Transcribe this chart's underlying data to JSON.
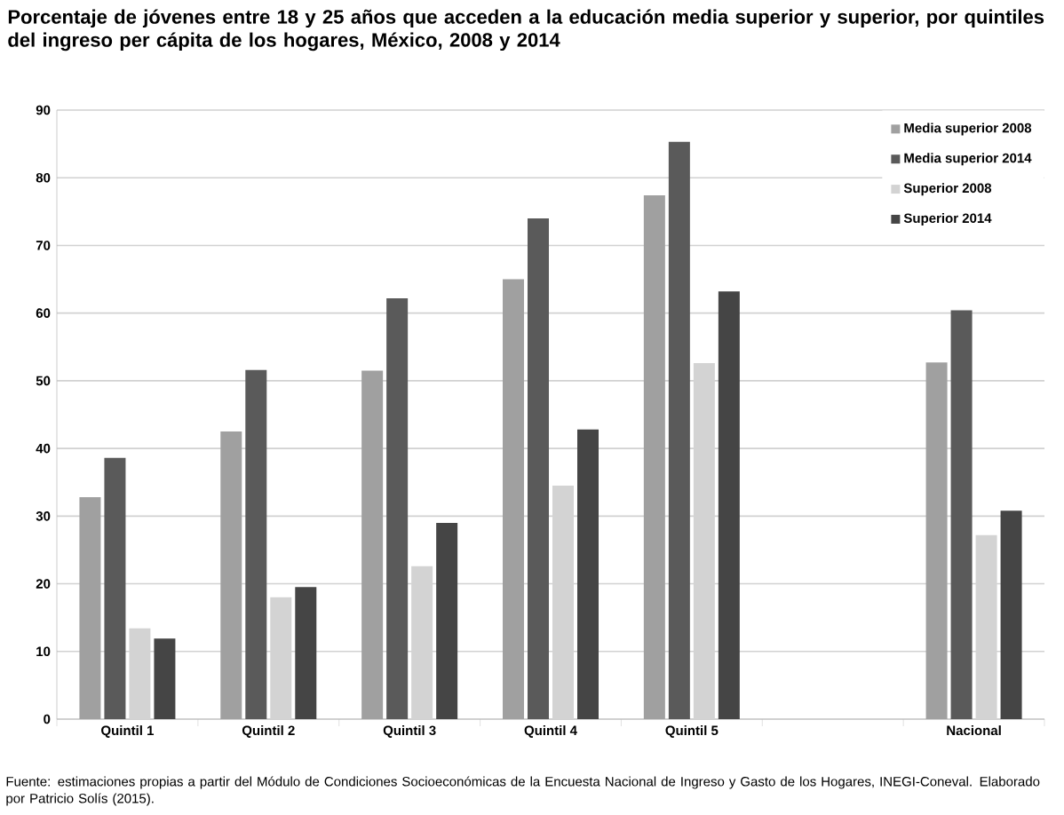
{
  "chart_data": {
    "type": "bar",
    "title": "Porcentaje de jóvenes entre 18 y 25 años que acceden a la educación media superior y superior, por quintiles del ingreso per cápita de los hogares, México, 2008 y 2014",
    "categories": [
      "Quintil 1",
      "Quintil 2",
      "Quintil 3",
      "Quintil 4",
      "Quintil 5",
      null,
      "Nacional"
    ],
    "series": [
      {
        "name": "Media superior 2008",
        "color": "#a0a0a0",
        "values": [
          32.8,
          42.5,
          51.5,
          65.0,
          77.4,
          null,
          52.7
        ]
      },
      {
        "name": "Media superior 2014",
        "color": "#5a5a5a",
        "values": [
          38.6,
          51.6,
          62.2,
          74.0,
          85.3,
          null,
          60.4
        ]
      },
      {
        "name": "Superior 2008",
        "color": "#d3d3d3",
        "values": [
          13.4,
          18.0,
          22.6,
          34.5,
          52.6,
          null,
          27.2
        ]
      },
      {
        "name": "Superior 2014",
        "color": "#454545",
        "values": [
          11.9,
          19.5,
          29.0,
          42.8,
          63.2,
          null,
          30.8
        ]
      }
    ],
    "ylim": [
      0,
      90
    ],
    "yticks": [
      0,
      10,
      20,
      30,
      40,
      50,
      60,
      70,
      80,
      90
    ],
    "grid": "y",
    "legend": "top right",
    "annotations": [
      "Fuente: estimaciones propias a partir del Módulo de Condiciones Socioeconómicas de la Encuesta Nacional de Ingreso y Gasto de los Hogares, INEGI-Coneval. Elaborado por Patricio Solís (2015)."
    ]
  }
}
